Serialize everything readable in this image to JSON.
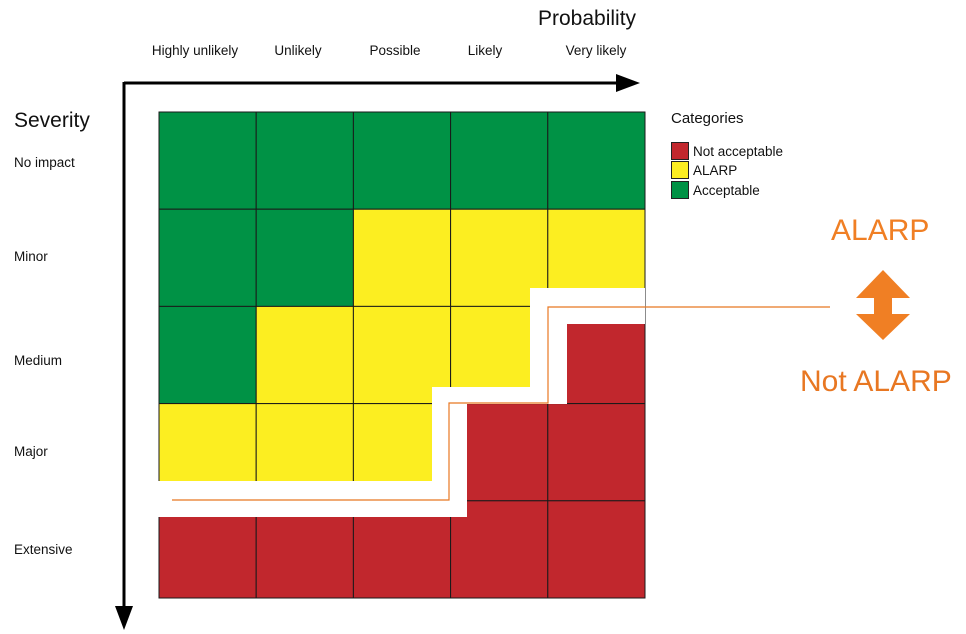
{
  "axes": {
    "x_title": "Probability",
    "y_title": "Severity",
    "probability_levels": [
      "Highly unlikely",
      "Unlikely",
      "Possible",
      "Likely",
      "Very likely"
    ],
    "severity_levels": [
      "No impact",
      "Minor",
      "Medium",
      "Major",
      "Extensive"
    ]
  },
  "legend": {
    "title": "Categories",
    "items": [
      {
        "label": "Not acceptable",
        "key": "not_acceptable"
      },
      {
        "label": "ALARP",
        "key": "alarp"
      },
      {
        "label": "Acceptable",
        "key": "acceptable"
      }
    ]
  },
  "colors": {
    "not_acceptable": "#c1272d",
    "alarp": "#fcee21",
    "acceptable": "#009245",
    "boundary": "#e87722",
    "axis": "#000000"
  },
  "matrix": [
    [
      "acceptable",
      "acceptable",
      "acceptable",
      "acceptable",
      "acceptable"
    ],
    [
      "acceptable",
      "acceptable",
      "alarp",
      "alarp",
      "alarp"
    ],
    [
      "acceptable",
      "alarp",
      "alarp",
      "alarp",
      "not_acceptable"
    ],
    [
      "alarp",
      "alarp",
      "alarp",
      "not_acceptable",
      "not_acceptable"
    ],
    [
      "not_acceptable",
      "not_acceptable",
      "not_acceptable",
      "not_acceptable",
      "not_acceptable"
    ]
  ],
  "annotation": {
    "upper_label": "ALARP",
    "lower_label": "Not ALARP",
    "arrow_icon": "double-headed-arrow-icon"
  }
}
